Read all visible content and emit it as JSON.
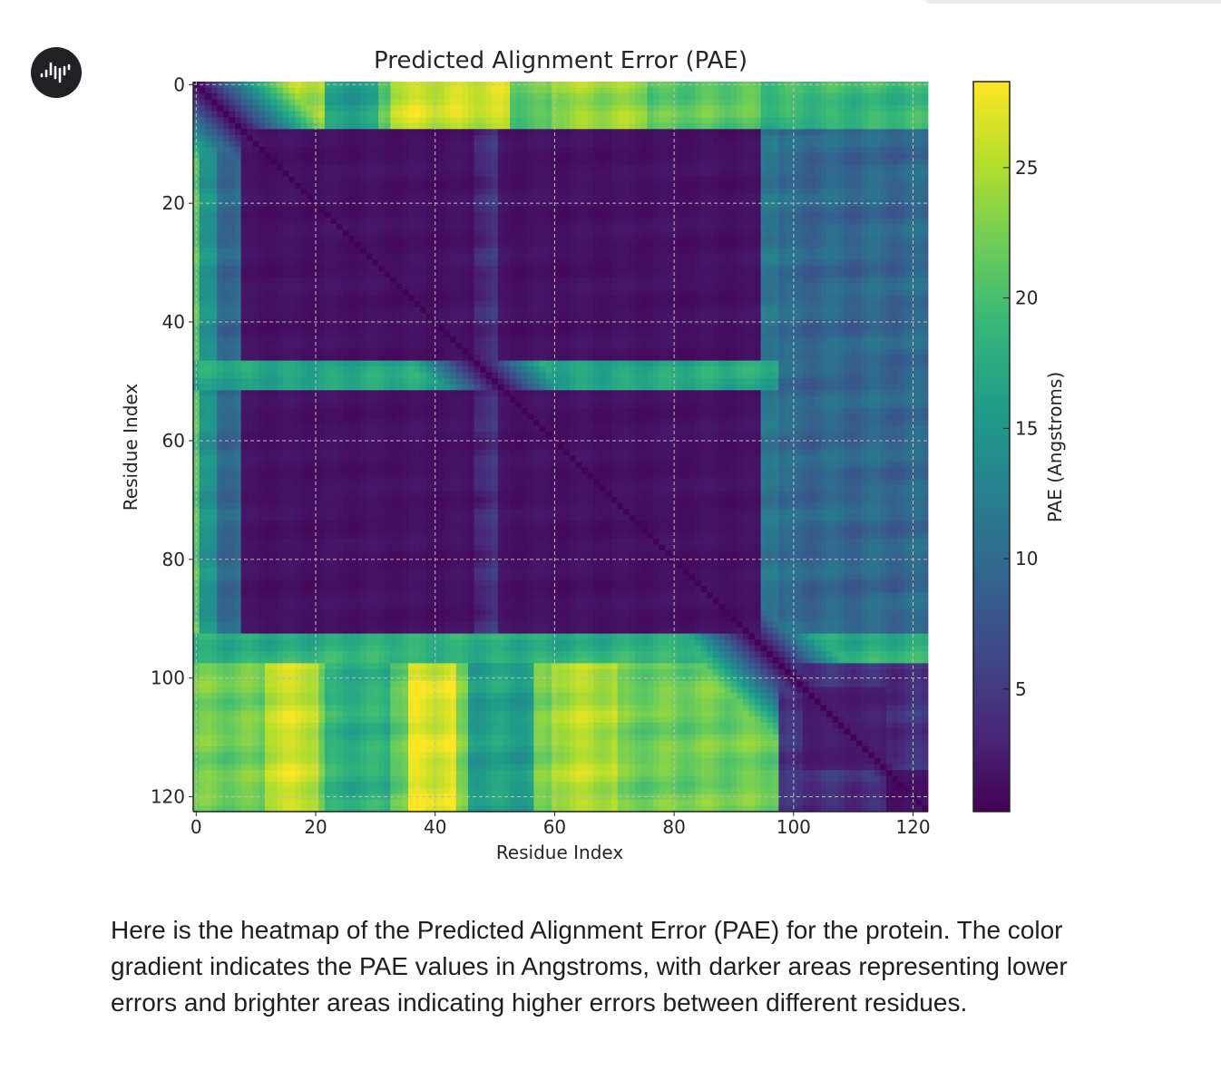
{
  "assistant": {
    "avatar_icon": "assistant-logo-icon"
  },
  "message": {
    "text": "Here is the heatmap of the Predicted Alignment Error (PAE) for the protein. The color gradient indicates the PAE values in Angstroms, with darker areas representing lower errors and brighter areas indicating higher errors between different residues."
  },
  "chart_data": {
    "type": "heatmap",
    "title": "Predicted Alignment Error (PAE)",
    "xlabel": "Residue Index",
    "ylabel": "Residue Index",
    "colorbar_label": "PAE (Angstroms)",
    "colormap": "viridis",
    "n_residues": 123,
    "xlim": [
      -0.5,
      122.5
    ],
    "ylim": [
      122.5,
      -0.5
    ],
    "xticks": [
      0,
      20,
      40,
      60,
      80,
      100,
      120
    ],
    "yticks": [
      0,
      20,
      40,
      60,
      80,
      100,
      120
    ],
    "colorbar_range": [
      0.3,
      28.3
    ],
    "colorbar_ticks": [
      5,
      10,
      15,
      20,
      25
    ],
    "grid": true,
    "diagonal_value": 0.5,
    "blocks": [
      {
        "rows": [
          0,
          7
        ],
        "cols": [
          0,
          97
        ],
        "value": 21
      },
      {
        "rows": [
          0,
          7
        ],
        "cols": [
          14,
          21
        ],
        "value": 25
      },
      {
        "rows": [
          0,
          7
        ],
        "cols": [
          33,
          52
        ],
        "value": 26
      },
      {
        "rows": [
          0,
          7
        ],
        "cols": [
          22,
          30
        ],
        "value": 16
      },
      {
        "rows": [
          0,
          7
        ],
        "cols": [
          60,
          75
        ],
        "value": 24
      },
      {
        "rows": [
          0,
          7
        ],
        "cols": [
          95,
          122
        ],
        "value": 19
      },
      {
        "rows": [
          8,
          92
        ],
        "cols": [
          0,
          0
        ],
        "value": 21
      },
      {
        "rows": [
          8,
          92
        ],
        "cols": [
          1,
          3
        ],
        "value": 14
      },
      {
        "rows": [
          8,
          92
        ],
        "cols": [
          4,
          7
        ],
        "value": 10
      },
      {
        "rows": [
          8,
          92
        ],
        "cols": [
          8,
          97
        ],
        "value": 1.5
      },
      {
        "rows": [
          8,
          92
        ],
        "cols": [
          47,
          50
        ],
        "value": 4
      },
      {
        "rows": [
          8,
          92
        ],
        "cols": [
          95,
          97
        ],
        "value": 12
      },
      {
        "rows": [
          47,
          51
        ],
        "cols": [
          0,
          97
        ],
        "value": 17
      },
      {
        "rows": [
          8,
          97
        ],
        "cols": [
          98,
          122
        ],
        "value": 9.5
      },
      {
        "rows": [
          93,
          97
        ],
        "cols": [
          0,
          97
        ],
        "value": 18
      },
      {
        "rows": [
          93,
          97
        ],
        "cols": [
          98,
          122
        ],
        "value": 18
      },
      {
        "rows": [
          98,
          122
        ],
        "cols": [
          0,
          97
        ],
        "value": 22
      },
      {
        "rows": [
          98,
          122
        ],
        "cols": [
          12,
          20
        ],
        "value": 26
      },
      {
        "rows": [
          98,
          122
        ],
        "cols": [
          22,
          32
        ],
        "value": 18
      },
      {
        "rows": [
          98,
          122
        ],
        "cols": [
          36,
          43
        ],
        "value": 27
      },
      {
        "rows": [
          98,
          122
        ],
        "cols": [
          46,
          56
        ],
        "value": 16
      },
      {
        "rows": [
          98,
          122
        ],
        "cols": [
          60,
          70
        ],
        "value": 25
      },
      {
        "rows": [
          98,
          122
        ],
        "cols": [
          98,
          122
        ],
        "value": 4
      },
      {
        "rows": [
          102,
          115
        ],
        "cols": [
          102,
          115
        ],
        "value": 2.5
      },
      {
        "rows": [
          116,
          122
        ],
        "cols": [
          116,
          122
        ],
        "value": 1.5
      }
    ]
  }
}
